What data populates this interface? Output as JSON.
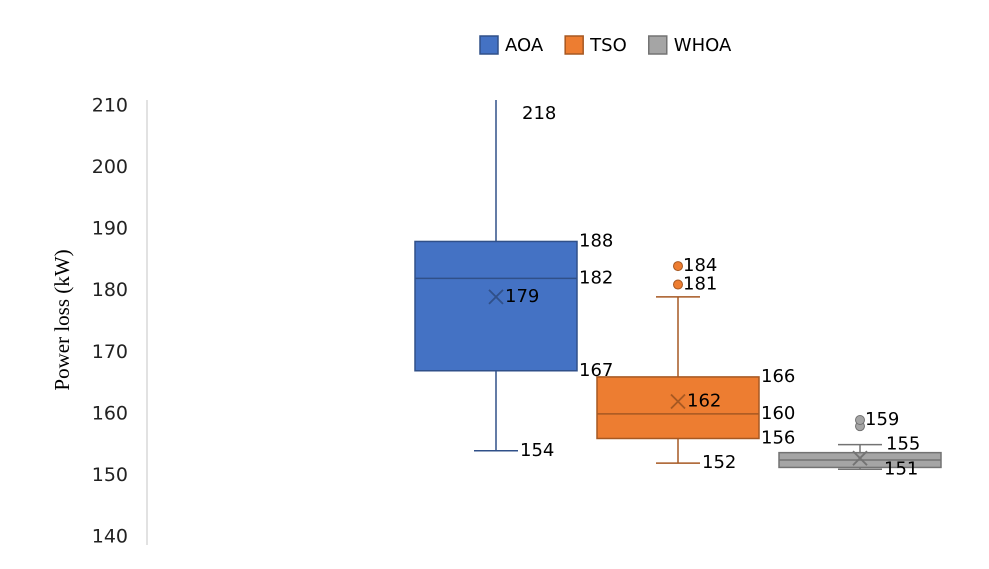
{
  "chart_data": {
    "type": "box",
    "y_label": "Power loss (kW)",
    "ylim": [
      140,
      210
    ],
    "yticks": [
      140,
      150,
      160,
      170,
      180,
      190,
      200,
      210
    ],
    "series": [
      {
        "name": "AOA",
        "color": "#4472c4",
        "min": 154,
        "q1": 167,
        "median": 182,
        "q3": 188,
        "max": 218,
        "mean": 179,
        "outliers": [],
        "labeled": [
          "min",
          "q1",
          "median",
          "q3",
          "max",
          "mean"
        ]
      },
      {
        "name": "TSO",
        "color": "#ed7d31",
        "min": 152,
        "q1": 156,
        "median": 160,
        "q3": 166,
        "max": 179,
        "mean": 162,
        "outliers": [
          181,
          184
        ],
        "labeled": [
          "min",
          "q1",
          "median",
          "q3",
          "mean",
          "outliers"
        ]
      },
      {
        "name": "WHOA",
        "color": "#a5a5a5",
        "min": 151,
        "q1": 151.3,
        "median": 152.5,
        "q3": 153.7,
        "max": 155,
        "mean": 152.8,
        "outliers": [
          158,
          159
        ],
        "labeled": [
          "min",
          "max",
          "outliers.1"
        ]
      }
    ]
  }
}
